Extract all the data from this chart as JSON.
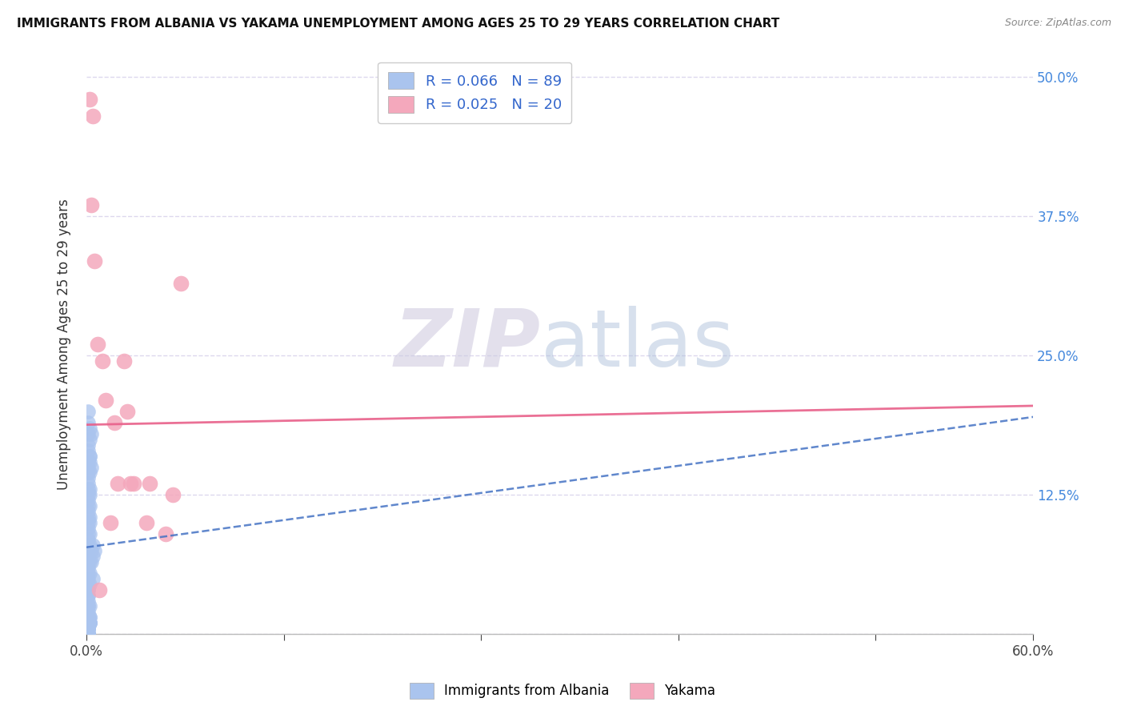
{
  "title": "IMMIGRANTS FROM ALBANIA VS YAKAMA UNEMPLOYMENT AMONG AGES 25 TO 29 YEARS CORRELATION CHART",
  "source": "Source: ZipAtlas.com",
  "ylabel": "Unemployment Among Ages 25 to 29 years",
  "legend_blue_R": "R = 0.066",
  "legend_blue_N": "N = 89",
  "legend_pink_R": "R = 0.025",
  "legend_pink_N": "N = 20",
  "legend_label_blue": "Immigrants from Albania",
  "legend_label_pink": "Yakama",
  "blue_color": "#aac4ee",
  "pink_color": "#f4a8bc",
  "blue_line_color": "#4472c4",
  "pink_line_color": "#e8608a",
  "background_color": "#ffffff",
  "grid_color": "#ddd8ee",
  "xlim": [
    0.0,
    0.6
  ],
  "ylim": [
    0.0,
    0.52
  ],
  "ytick_vals": [
    0.0,
    0.125,
    0.25,
    0.375,
    0.5
  ],
  "xtick_positions": [
    0.0,
    0.125,
    0.25,
    0.375,
    0.5,
    0.6
  ],
  "blue_line_x": [
    0.0,
    0.6
  ],
  "blue_line_y": [
    0.078,
    0.195
  ],
  "pink_line_x": [
    0.0,
    0.6
  ],
  "pink_line_y": [
    0.188,
    0.205
  ],
  "blue_scatter_x": [
    0.001,
    0.001,
    0.001,
    0.002,
    0.001,
    0.002,
    0.001,
    0.003,
    0.002,
    0.001,
    0.001,
    0.002,
    0.001,
    0.001,
    0.002,
    0.001,
    0.003,
    0.002,
    0.001,
    0.001,
    0.001,
    0.002,
    0.001,
    0.002,
    0.001,
    0.001,
    0.002,
    0.001,
    0.001,
    0.002,
    0.001,
    0.002,
    0.001,
    0.001,
    0.002,
    0.001,
    0.001,
    0.002,
    0.001,
    0.001,
    0.001,
    0.002,
    0.001,
    0.001,
    0.002,
    0.001,
    0.001,
    0.002,
    0.001,
    0.001,
    0.001,
    0.001,
    0.002,
    0.001,
    0.001,
    0.001,
    0.002,
    0.001,
    0.001,
    0.002,
    0.001,
    0.001,
    0.002,
    0.001,
    0.001,
    0.001,
    0.002,
    0.001,
    0.001,
    0.001,
    0.001,
    0.002,
    0.001,
    0.001,
    0.001,
    0.002,
    0.001,
    0.001,
    0.003,
    0.004,
    0.004,
    0.005,
    0.003,
    0.004,
    0.001,
    0.001,
    0.001,
    0.001,
    0.001
  ],
  "blue_scatter_y": [
    0.2,
    0.19,
    0.18,
    0.185,
    0.17,
    0.175,
    0.165,
    0.18,
    0.16,
    0.155,
    0.15,
    0.16,
    0.145,
    0.14,
    0.155,
    0.135,
    0.15,
    0.145,
    0.13,
    0.125,
    0.12,
    0.13,
    0.115,
    0.125,
    0.11,
    0.105,
    0.115,
    0.1,
    0.095,
    0.105,
    0.09,
    0.1,
    0.085,
    0.08,
    0.09,
    0.075,
    0.07,
    0.08,
    0.065,
    0.06,
    0.055,
    0.065,
    0.05,
    0.045,
    0.055,
    0.04,
    0.035,
    0.045,
    0.03,
    0.025,
    0.02,
    0.015,
    0.025,
    0.01,
    0.005,
    0.0,
    0.01,
    0.0,
    0.005,
    0.015,
    0.0,
    0.005,
    0.015,
    0.0,
    0.005,
    0.0,
    0.01,
    0.0,
    0.005,
    0.0,
    0.0,
    0.01,
    0.0,
    0.005,
    0.0,
    0.01,
    0.0,
    0.005,
    0.075,
    0.07,
    0.08,
    0.075,
    0.065,
    0.05,
    0.04,
    0.035,
    0.025,
    0.015,
    0.005
  ],
  "pink_scatter_x": [
    0.002,
    0.004,
    0.003,
    0.005,
    0.007,
    0.01,
    0.012,
    0.018,
    0.024,
    0.026,
    0.028,
    0.03,
    0.038,
    0.04,
    0.05,
    0.055,
    0.06,
    0.008,
    0.02,
    0.015
  ],
  "pink_scatter_y": [
    0.48,
    0.465,
    0.385,
    0.335,
    0.26,
    0.245,
    0.21,
    0.19,
    0.245,
    0.2,
    0.135,
    0.135,
    0.1,
    0.135,
    0.09,
    0.125,
    0.315,
    0.04,
    0.135,
    0.1
  ]
}
